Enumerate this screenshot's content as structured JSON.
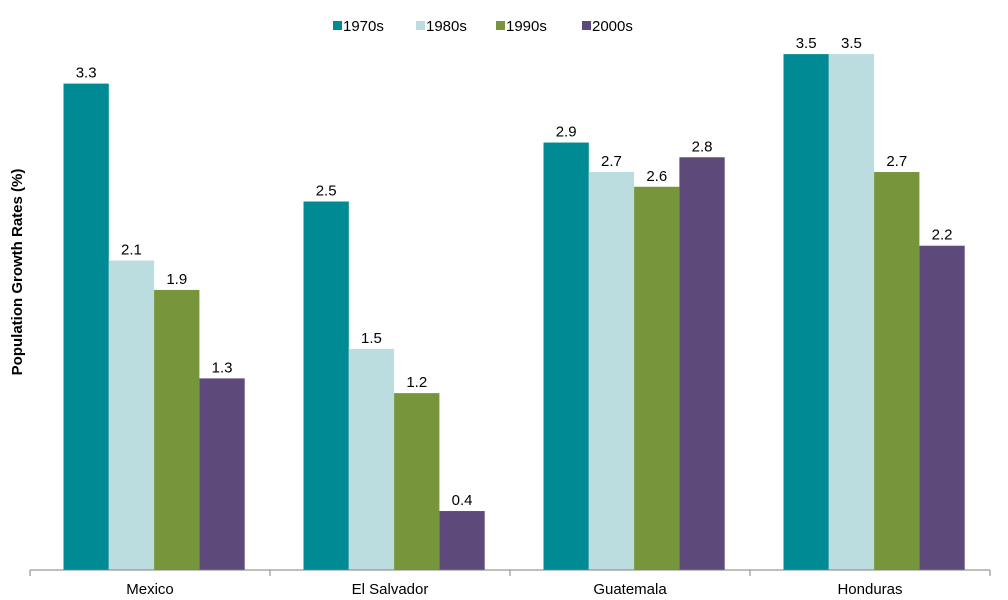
{
  "chart_data": {
    "type": "bar",
    "ylabel": "Population Growth Rates (%)",
    "xlabel": "",
    "categories": [
      "Mexico",
      "El Salvador",
      "Guatemala",
      "Honduras"
    ],
    "series": [
      {
        "name": "1970s",
        "color": "#008b94",
        "values": [
          3.3,
          2.5,
          2.9,
          3.5
        ]
      },
      {
        "name": "1980s",
        "color": "#bcdde0",
        "values": [
          2.1,
          1.5,
          2.7,
          3.5
        ]
      },
      {
        "name": "1990s",
        "color": "#77963c",
        "values": [
          1.9,
          1.2,
          2.6,
          2.7
        ]
      },
      {
        "name": "2000s",
        "color": "#5d4a7a",
        "values": [
          1.3,
          0.4,
          2.8,
          2.2
        ]
      }
    ],
    "ylim": [
      0,
      3.5
    ],
    "grid": false,
    "legend_position": "top-center",
    "data_labels": true
  }
}
